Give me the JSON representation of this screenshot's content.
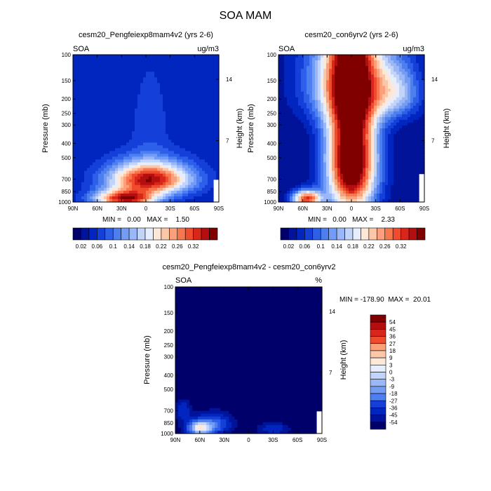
{
  "figure": {
    "title": "SOA MAM"
  },
  "colormap": [
    "#00006b",
    "#001399",
    "#0026bf",
    "#1440d9",
    "#2e5fe8",
    "#4d7ff0",
    "#739cf5",
    "#9ab8f8",
    "#c2d4fa",
    "#e6eefd",
    "#fde8d8",
    "#fcc7a8",
    "#fba07a",
    "#f7774f",
    "#ef4c2d",
    "#d9261a",
    "#b30f10",
    "#800000"
  ],
  "chart_data": [
    {
      "type": "contour",
      "title": "cesm20_Pengfeiexp8mam4v2 (yrs 2-6)",
      "variable": "SOA",
      "units": "ug/m3",
      "ylabel": "Pressure (mb)",
      "y2label": "Height (km)",
      "xlim": [
        90,
        -90
      ],
      "xticks": [
        "90N",
        "60N",
        "30N",
        "0",
        "30S",
        "60S",
        "90S"
      ],
      "yticks": [
        "100",
        "150",
        "200",
        "250",
        "300",
        "400",
        "500",
        "700",
        "850",
        "1000"
      ],
      "y2ticks": [
        "14",
        "7"
      ],
      "stats": "MIN =   0.00   MAX =    1.50",
      "min": 0.0,
      "max": 1.5,
      "colorbar": {
        "orientation": "horizontal",
        "labels": [
          "0.02",
          "0.06",
          "0.1",
          "0.14",
          "0.18",
          "0.22",
          "0.26",
          "0.32"
        ]
      },
      "field": {
        "background_level": 2,
        "blobs": [
          {
            "lat": -5,
            "p": 700,
            "sx": 50,
            "sy": 180,
            "amp": 15
          },
          {
            "lat": -5,
            "p": 280,
            "sx": 26,
            "sy": 220,
            "amp": 1.6
          },
          {
            "lat": 25,
            "p": 950,
            "sx": 38,
            "sy": 120,
            "amp": 14
          }
        ],
        "missing_regions": [
          {
            "lat_from": -90,
            "lat_to": -83,
            "p_from": 700
          }
        ]
      }
    },
    {
      "type": "contour",
      "title": "cesm20_con6yrv2 (yrs 2-6)",
      "variable": "SOA",
      "units": "ug/m3",
      "ylabel": "Pressure (mb)",
      "y2label": "Height (km)",
      "xlim": [
        90,
        -90
      ],
      "xticks": [
        "90N",
        "60N",
        "30N",
        "0",
        "30S",
        "60S",
        "90S"
      ],
      "yticks": [
        "100",
        "150",
        "200",
        "250",
        "300",
        "400",
        "500",
        "700",
        "850",
        "1000"
      ],
      "y2ticks": [
        "14",
        "7"
      ],
      "stats": "MIN =   0.00   MAX =    2.33",
      "min": 0.0,
      "max": 2.33,
      "colorbar": {
        "orientation": "horizontal",
        "labels": [
          "0.02",
          "0.06",
          "0.1",
          "0.14",
          "0.18",
          "0.22",
          "0.26",
          "0.32"
        ]
      },
      "field": {
        "background_level": 1,
        "blobs": [
          {
            "lat": 0,
            "p": 500,
            "sx": 30,
            "sy": 600,
            "amp": 20
          },
          {
            "lat": 5,
            "p": 150,
            "sx": 55,
            "sy": 120,
            "amp": 8
          },
          {
            "lat": -55,
            "p": 180,
            "sx": 30,
            "sy": 80,
            "amp": 6
          },
          {
            "lat": 55,
            "p": 950,
            "sx": 18,
            "sy": 120,
            "amp": 14
          }
        ],
        "missing_regions": [
          {
            "lat_from": -90,
            "lat_to": -83,
            "p_from": 650
          }
        ]
      }
    },
    {
      "type": "contour",
      "title": "cesm20_Pengfeiexp8mam4v2 - cesm20_con6yrv2",
      "variable": "SOA",
      "units": "%",
      "ylabel": "Pressure (mb)",
      "y2label": "Height (km)",
      "xlim": [
        90,
        -90
      ],
      "xticks": [
        "90N",
        "60N",
        "30N",
        "0",
        "30S",
        "60S",
        "90S"
      ],
      "yticks": [
        "100",
        "150",
        "200",
        "250",
        "300",
        "400",
        "500",
        "700",
        "850",
        "1000"
      ],
      "y2ticks": [
        "14",
        "7"
      ],
      "stats": "MIN = -178.90  MAX =  20.01",
      "min": -178.9,
      "max": 20.01,
      "colorbar": {
        "orientation": "vertical",
        "labels": [
          "54",
          "45",
          "36",
          "27",
          "18",
          "9",
          "3",
          "0",
          "-3",
          "-9",
          "-18",
          "-27",
          "-36",
          "-45",
          "-54"
        ]
      },
      "field": {
        "background_level": 0,
        "blobs": [
          {
            "lat": 60,
            "p": 920,
            "sx": 16,
            "sy": 110,
            "amp": 9
          },
          {
            "lat": 40,
            "p": 860,
            "sx": 22,
            "sy": 150,
            "amp": 4
          },
          {
            "lat": 80,
            "p": 700,
            "sx": 10,
            "sy": 120,
            "amp": 3
          },
          {
            "lat": -30,
            "p": 930,
            "sx": 20,
            "sy": 90,
            "amp": 3
          }
        ],
        "missing_regions": [
          {
            "lat_from": -90,
            "lat_to": -84,
            "p_from": 700
          }
        ]
      }
    }
  ]
}
